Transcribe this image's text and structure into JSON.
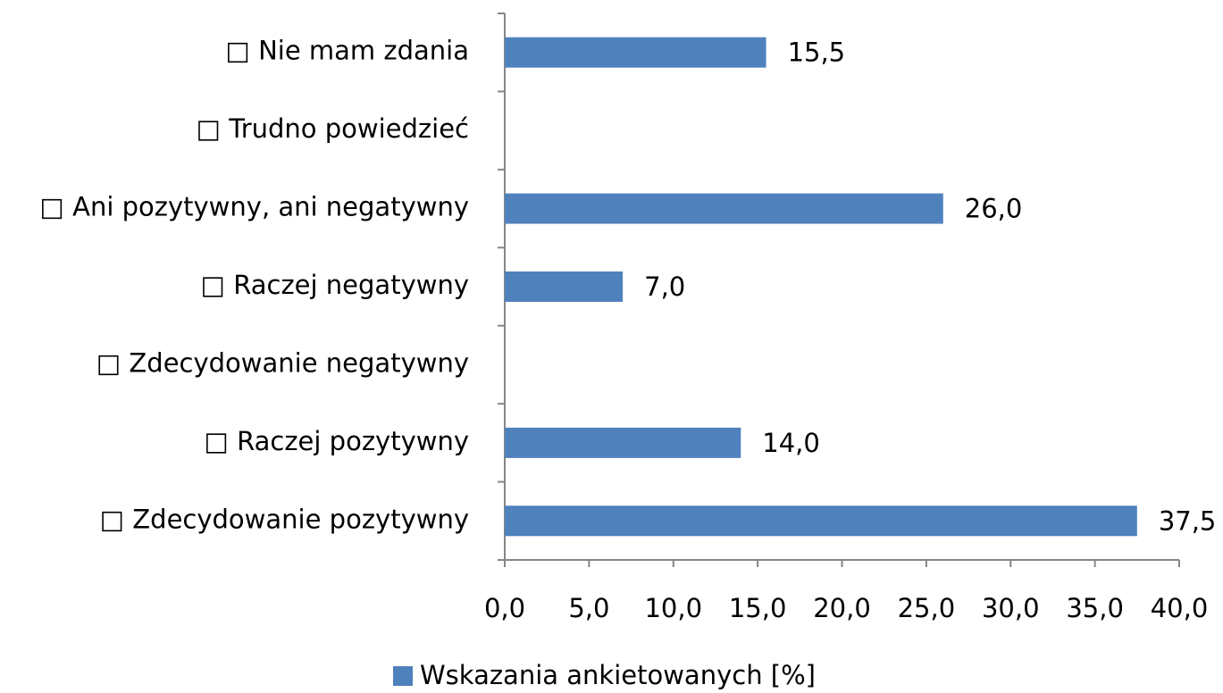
{
  "chart_data": {
    "type": "bar",
    "orientation": "horizontal",
    "categories": [
      "□ Nie mam zdania",
      "□ Trudno powiedzieć",
      "□ Ani pozytywny, ani negatywny",
      "□ Raczej negatywny",
      "□ Zdecydowanie negatywny",
      "□ Raczej pozytywny",
      "□ Zdecydowanie pozytywny"
    ],
    "series": [
      {
        "name": "Wskazania ankietowanych [%]",
        "color": "#4f81bd",
        "values": [
          15.5,
          null,
          26.0,
          7.0,
          null,
          14.0,
          37.5
        ],
        "value_labels": [
          "15,5",
          null,
          "26,0",
          "7,0",
          null,
          "14,0",
          "37,5"
        ]
      }
    ],
    "xlim": [
      0,
      40
    ],
    "xticks": [
      {
        "value": 0,
        "label": "0,0"
      },
      {
        "value": 5,
        "label": "5,0"
      },
      {
        "value": 10,
        "label": "10,0"
      },
      {
        "value": 15,
        "label": "15,0"
      },
      {
        "value": 20,
        "label": "20,0"
      },
      {
        "value": 25,
        "label": "25,0"
      },
      {
        "value": 30,
        "label": "30,0"
      },
      {
        "value": 35,
        "label": "35,0"
      },
      {
        "value": 40,
        "label": "40,0"
      }
    ],
    "legend": "bottom"
  }
}
